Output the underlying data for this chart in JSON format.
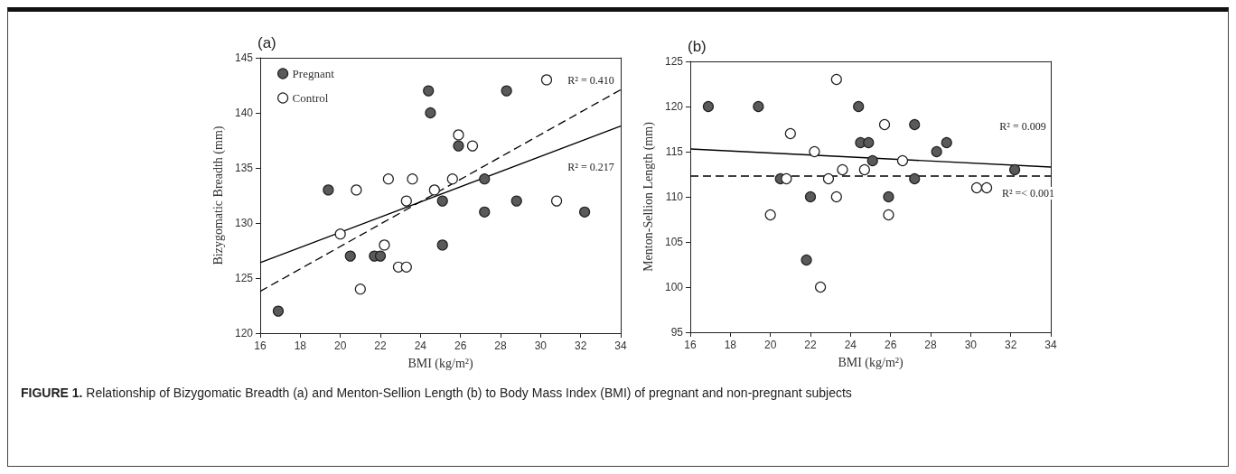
{
  "chart_data": [
    {
      "type": "scatter",
      "title": "(a)",
      "xlabel": "BMI (kg/m²)",
      "ylabel": "Bizygomatic Breadth (mm)",
      "xlim": [
        16,
        34
      ],
      "xticks": [
        16,
        18,
        20,
        22,
        24,
        26,
        28,
        30,
        32,
        34
      ],
      "ylim": [
        120,
        145
      ],
      "yticks": [
        120,
        125,
        130,
        135,
        140,
        145
      ],
      "grid": false,
      "legend": "top left",
      "series": [
        {
          "name": "Pregnant",
          "marker": "circle",
          "color": "#5a5a5a",
          "x": [
            16.9,
            19.4,
            20.5,
            21.7,
            22.0,
            24.4,
            24.5,
            25.9,
            25.1,
            25.1,
            27.2,
            27.2,
            28.3,
            28.8,
            32.2
          ],
          "values": [
            122,
            133,
            127,
            127,
            127,
            142,
            140,
            137,
            132,
            128,
            134,
            131,
            142,
            132,
            131
          ]
        },
        {
          "name": "Control",
          "marker": "circle",
          "color": "#ffffff",
          "x": [
            20.0,
            20.8,
            21.0,
            22.2,
            22.4,
            22.9,
            23.3,
            23.3,
            23.6,
            24.7,
            25.6,
            25.9,
            26.6,
            30.3,
            30.8
          ],
          "values": [
            129,
            133,
            124,
            128,
            134,
            126,
            126,
            132,
            134,
            133,
            134,
            138,
            137,
            143,
            132
          ]
        },
        {
          "type": "line",
          "color": "#000000",
          "line_style": "solid",
          "x": [
            16,
            34
          ],
          "values": [
            126.4,
            138.8
          ]
        },
        {
          "type": "line",
          "color": "#000000",
          "line_style": "dashed",
          "x": [
            16,
            34
          ],
          "values": [
            123.8,
            142.1
          ]
        }
      ],
      "annotations": [
        "R² = 0.410",
        "R² = 0.217",
        "FIGURE 1.   Relationship of Bizygomatic Breadth (a) and Menton-Sellion Length (b) to Body Mass Index (BMI) of pregnant and non-pregnant subjects"
      ]
    },
    {
      "type": "scatter",
      "title": "(b)",
      "xlabel": "BMI (kg/m²)",
      "ylabel": "Menton-Sellion Length (mm)",
      "xlim": [
        16,
        34
      ],
      "xticks": [
        16,
        18,
        20,
        22,
        24,
        26,
        28,
        30,
        32,
        34
      ],
      "ylim": [
        95,
        125
      ],
      "yticks": [
        95,
        100,
        105,
        110,
        115,
        120,
        125
      ],
      "grid": false,
      "legend": false,
      "series": [
        {
          "marker": "circle",
          "color": "#5a5a5a",
          "x": [
            16.9,
            19.4,
            20.5,
            21.8,
            22.0,
            24.4,
            24.5,
            24.9,
            25.1,
            25.9,
            27.2,
            27.2,
            28.3,
            28.8,
            32.2
          ],
          "values": [
            120,
            120,
            112,
            103,
            110,
            120,
            116,
            116,
            114,
            110,
            118,
            112,
            115,
            116,
            113
          ]
        },
        {
          "marker": "circle",
          "color": "#ffffff",
          "x": [
            20.0,
            20.8,
            21.0,
            22.2,
            22.5,
            22.9,
            23.3,
            23.3,
            23.6,
            24.7,
            25.7,
            25.9,
            26.6,
            30.3,
            30.8
          ],
          "values": [
            108,
            112,
            117,
            115,
            100,
            112,
            123,
            110,
            113,
            113,
            118,
            108,
            114,
            111,
            111
          ]
        },
        {
          "type": "line",
          "color": "#000000",
          "line_style": "solid",
          "x": [
            16,
            34
          ],
          "values": [
            115.3,
            113.3
          ]
        },
        {
          "type": "line",
          "color": "#000000",
          "line_style": "dashed",
          "x": [
            16,
            34
          ],
          "values": [
            112.3,
            112.3
          ]
        }
      ],
      "annotations": [
        "R² = 0.009",
        "R² =< 0.001"
      ]
    }
  ]
}
